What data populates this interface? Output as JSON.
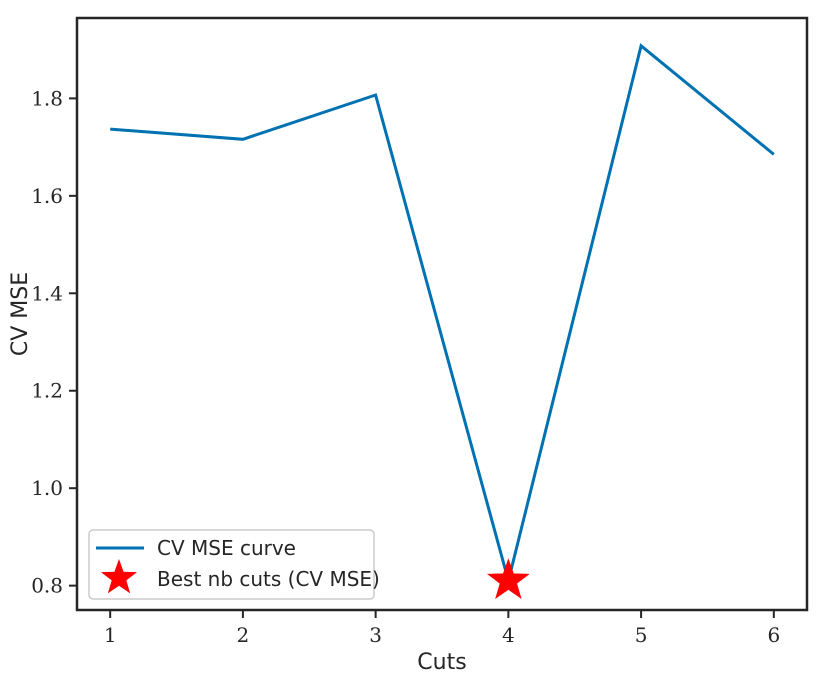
{
  "chart_data": {
    "type": "line",
    "x": [
      1,
      2,
      3,
      4,
      5,
      6
    ],
    "series": [
      {
        "name": "CV MSE curve",
        "values": [
          1.737,
          1.716,
          1.807,
          0.81,
          1.908,
          1.685
        ],
        "color": "#0072b2"
      }
    ],
    "highlight": {
      "name": "Best nb cuts (CV MSE)",
      "x": 4,
      "y": 0.81,
      "marker": "star",
      "color": "#ff0000"
    },
    "xlabel": "Cuts",
    "ylabel": "CV MSE",
    "xticks": [
      1,
      2,
      3,
      4,
      5,
      6
    ],
    "yticks": [
      0.8,
      1.0,
      1.2,
      1.4,
      1.6,
      1.8
    ],
    "ytick_labels": [
      "0.8",
      "1.0",
      "1.2",
      "1.4",
      "1.6",
      "1.8"
    ],
    "xlim": [
      0.75,
      6.25
    ],
    "ylim": [
      0.75,
      1.965
    ],
    "grid": false,
    "legend_position": "lower-left"
  }
}
